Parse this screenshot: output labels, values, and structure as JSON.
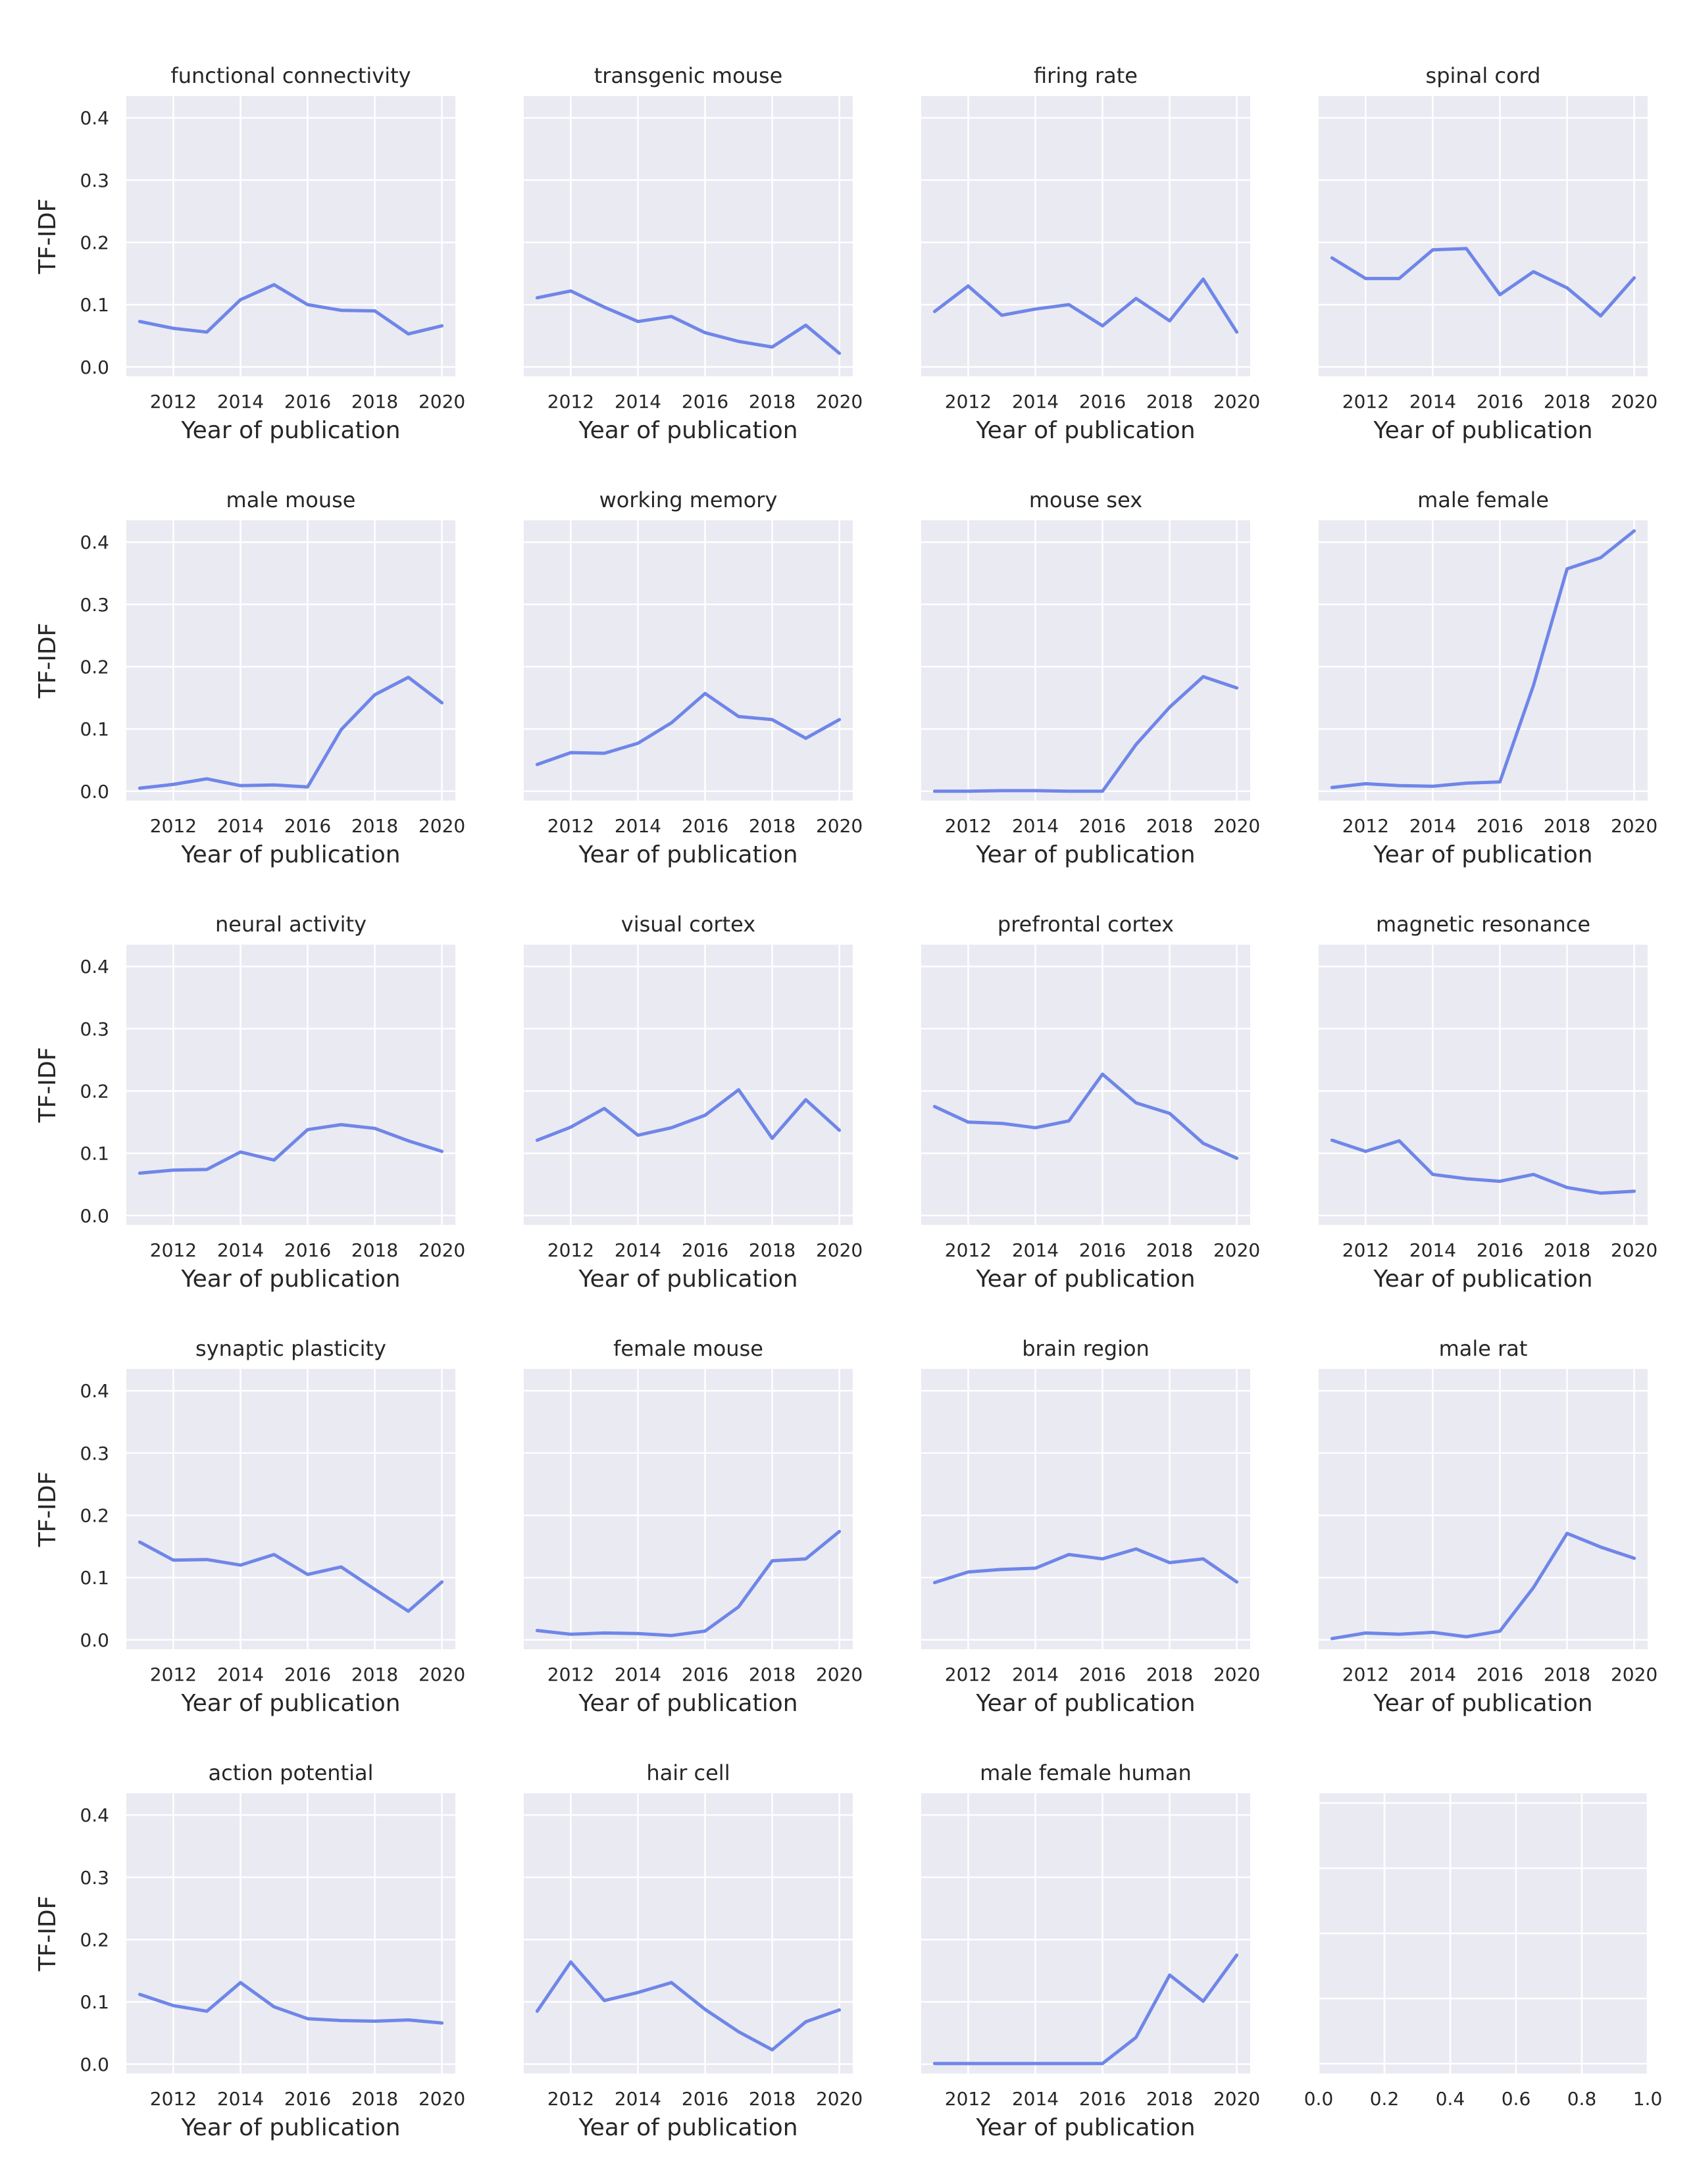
{
  "chart_data": {
    "type": "line",
    "layout": "small-multiples-5x4",
    "line_color": "#6f86e8",
    "background_color": "#eaeaf2",
    "grid": true,
    "xlabel": "Year of publication",
    "ylabel": "TF-IDF",
    "ylim": [
      -0.015,
      0.435
    ],
    "yticks": [
      "0.0",
      "0.1",
      "0.2",
      "0.3",
      "0.4"
    ],
    "xticks": [
      "2012",
      "2014",
      "2016",
      "2018",
      "2020"
    ],
    "x": [
      2011,
      2012,
      2013,
      2014,
      2015,
      2016,
      2017,
      2018,
      2019,
      2020
    ],
    "panels": [
      {
        "title": "functional connectivity",
        "values": [
          0.073,
          0.062,
          0.056,
          0.108,
          0.132,
          0.1,
          0.091,
          0.09,
          0.053,
          0.066
        ]
      },
      {
        "title": "transgenic mouse",
        "values": [
          0.111,
          0.122,
          0.096,
          0.073,
          0.081,
          0.055,
          0.041,
          0.032,
          0.067,
          0.022
        ]
      },
      {
        "title": "firing rate",
        "values": [
          0.089,
          0.13,
          0.083,
          0.093,
          0.1,
          0.066,
          0.11,
          0.074,
          0.141,
          0.056
        ]
      },
      {
        "title": "spinal cord",
        "values": [
          0.175,
          0.142,
          0.142,
          0.188,
          0.19,
          0.116,
          0.153,
          0.127,
          0.082,
          0.143
        ]
      },
      {
        "title": "male mouse",
        "values": [
          0.005,
          0.011,
          0.02,
          0.009,
          0.01,
          0.007,
          0.099,
          0.155,
          0.183,
          0.142
        ]
      },
      {
        "title": "working memory",
        "values": [
          0.043,
          0.062,
          0.061,
          0.077,
          0.11,
          0.157,
          0.12,
          0.115,
          0.085,
          0.115
        ]
      },
      {
        "title": "mouse sex",
        "values": [
          0.0,
          0.0,
          0.001,
          0.001,
          0.0,
          0.0,
          0.075,
          0.135,
          0.184,
          0.166
        ]
      },
      {
        "title": "male female",
        "values": [
          0.006,
          0.012,
          0.009,
          0.008,
          0.013,
          0.015,
          0.17,
          0.357,
          0.375,
          0.418
        ]
      },
      {
        "title": "neural activity",
        "values": [
          0.068,
          0.073,
          0.074,
          0.102,
          0.089,
          0.138,
          0.146,
          0.14,
          0.12,
          0.103
        ]
      },
      {
        "title": "visual cortex",
        "values": [
          0.121,
          0.142,
          0.172,
          0.129,
          0.141,
          0.161,
          0.202,
          0.124,
          0.186,
          0.137
        ]
      },
      {
        "title": "prefrontal cortex",
        "values": [
          0.175,
          0.15,
          0.148,
          0.141,
          0.152,
          0.227,
          0.181,
          0.164,
          0.116,
          0.092
        ]
      },
      {
        "title": "magnetic resonance",
        "values": [
          0.121,
          0.103,
          0.12,
          0.066,
          0.059,
          0.055,
          0.066,
          0.045,
          0.036,
          0.039
        ]
      },
      {
        "title": "synaptic plasticity",
        "values": [
          0.157,
          0.128,
          0.129,
          0.12,
          0.137,
          0.105,
          0.117,
          0.081,
          0.046,
          0.093
        ]
      },
      {
        "title": "female mouse",
        "values": [
          0.015,
          0.009,
          0.011,
          0.01,
          0.007,
          0.014,
          0.053,
          0.127,
          0.13,
          0.174
        ]
      },
      {
        "title": "brain region",
        "values": [
          0.092,
          0.109,
          0.113,
          0.115,
          0.137,
          0.13,
          0.146,
          0.124,
          0.13,
          0.093
        ]
      },
      {
        "title": "male rat",
        "values": [
          0.002,
          0.011,
          0.009,
          0.012,
          0.005,
          0.014,
          0.084,
          0.171,
          0.149,
          0.131
        ]
      },
      {
        "title": "action potential",
        "values": [
          0.112,
          0.094,
          0.085,
          0.131,
          0.092,
          0.073,
          0.07,
          0.069,
          0.071,
          0.066
        ]
      },
      {
        "title": "hair cell",
        "values": [
          0.085,
          0.164,
          0.102,
          0.115,
          0.131,
          0.088,
          0.052,
          0.023,
          0.068,
          0.087
        ]
      },
      {
        "title": "male female human",
        "values": [
          0.001,
          0.001,
          0.001,
          0.001,
          0.001,
          0.001,
          0.043,
          0.143,
          0.101,
          0.175
        ]
      },
      {
        "title": "",
        "values": [],
        "empty": true,
        "xlim": [
          0.0,
          1.0
        ],
        "xticks": [
          "0.0",
          "0.2",
          "0.4",
          "0.6",
          "0.8",
          "1.0"
        ]
      }
    ]
  }
}
